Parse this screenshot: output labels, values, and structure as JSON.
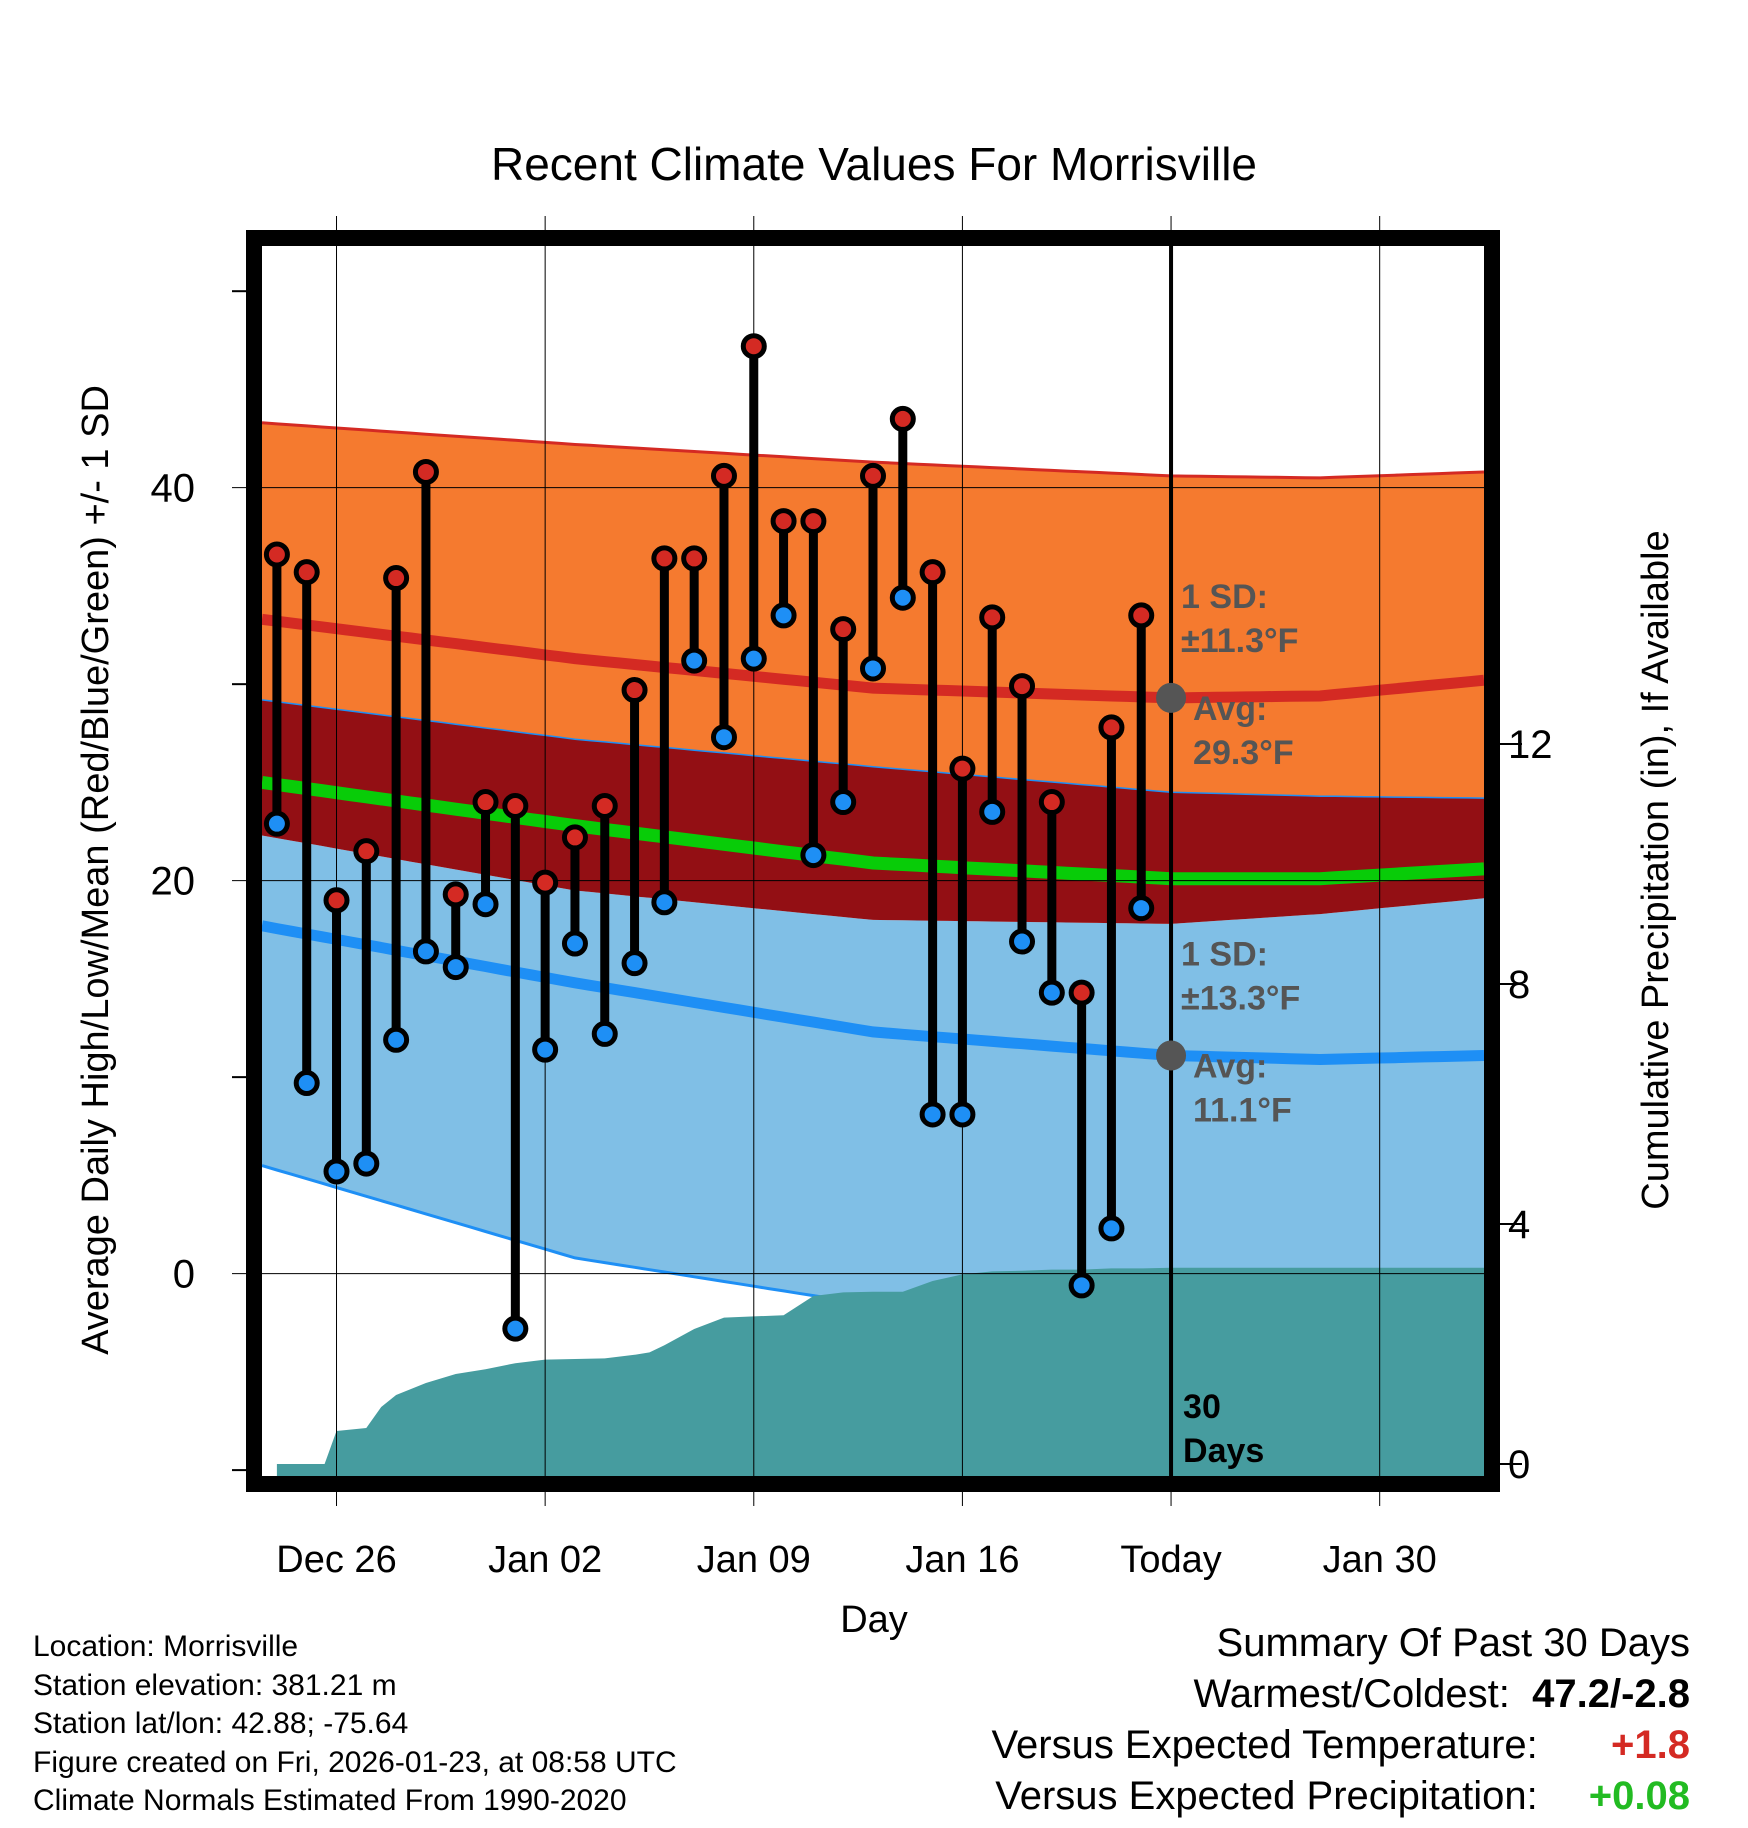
{
  "chart_data": {
    "type": "line",
    "title": "Recent Climate Values For Morrisville",
    "xlabel": "Day",
    "ylabel": "Average Daily High/Low/Mean (Red/Blue/Green) +/- 1 SD",
    "y2label": "Cumulative Precipitation (in), If Available",
    "x_tick_labels": [
      "Dec 26",
      "Jan 02",
      "Jan 09",
      "Jan 16",
      "Today",
      "Jan 30"
    ],
    "x_tick_days": [
      2,
      9,
      16,
      23,
      30,
      37
    ],
    "xlim": [
      -0.5,
      40.5
    ],
    "ylim": [
      -10.3,
      52.3
    ],
    "y_ticks": [
      0,
      20,
      40
    ],
    "y2lim": [
      -0.2,
      20.3
    ],
    "y2_ticks": [
      0,
      4,
      8,
      12
    ],
    "grid": true,
    "today_day": 30,
    "period_label_line1": "30",
    "period_label_line2": "Days",
    "normal_high": {
      "day": [
        -0.5,
        10,
        20,
        30,
        35,
        40.5
      ],
      "mean": [
        33.3,
        31.3,
        29.8,
        29.3,
        29.4,
        30.2
      ],
      "sd_upper": [
        43.3,
        42.2,
        41.3,
        40.6,
        40.5,
        40.8
      ],
      "sd_lower": [
        29.2,
        27.2,
        25.8,
        24.5,
        24.3,
        24.2
      ]
    },
    "normal_low": {
      "day": [
        -0.5,
        10,
        20,
        30,
        35,
        40.5
      ],
      "mean": [
        17.7,
        14.8,
        12.3,
        11.1,
        10.9,
        11.1
      ],
      "sd_upper": [
        22.3,
        19.5,
        18.0,
        17.8,
        18.3,
        19.1
      ],
      "sd_lower": [
        5.5,
        0.8,
        -1.6,
        -1.9,
        -1.8,
        -1.0
      ]
    },
    "normal_mean": {
      "day": [
        -0.5,
        10,
        20,
        30,
        35,
        40.5
      ],
      "values": [
        25.0,
        22.8,
        20.9,
        20.1,
        20.1,
        20.6
      ]
    },
    "days": [
      0,
      1,
      2,
      3,
      4,
      5,
      6,
      7,
      8,
      9,
      10,
      11,
      12,
      13,
      14,
      15,
      16,
      17,
      18,
      19,
      20,
      21,
      22,
      23,
      24,
      25,
      26,
      27,
      28,
      29
    ],
    "highs": [
      36.6,
      35.7,
      19.0,
      21.5,
      35.4,
      40.8,
      19.3,
      24.0,
      23.8,
      19.9,
      22.2,
      23.8,
      29.7,
      36.4,
      36.4,
      40.6,
      47.2,
      38.3,
      38.3,
      32.8,
      40.6,
      43.5,
      35.7,
      25.7,
      33.4,
      29.9,
      24.0,
      14.3,
      27.8,
      33.5
    ],
    "lows": [
      22.9,
      9.7,
      5.2,
      5.6,
      11.9,
      16.4,
      15.6,
      18.8,
      -2.8,
      11.4,
      16.8,
      12.2,
      15.8,
      18.9,
      31.2,
      27.3,
      31.3,
      33.5,
      21.3,
      24.0,
      30.8,
      34.4,
      8.1,
      8.1,
      23.5,
      16.9,
      14.3,
      -0.6,
      2.3,
      18.6
    ],
    "precip_days": [
      0,
      1,
      1.6,
      2,
      3,
      3.5,
      4,
      5,
      6,
      7,
      8,
      9,
      10,
      11,
      12,
      12.5,
      13,
      14,
      15,
      16,
      17,
      18,
      19,
      20,
      21,
      22,
      23,
      24,
      25,
      26,
      27,
      28,
      29,
      30,
      40.5
    ],
    "precip_cumulative": [
      0,
      0,
      0,
      0.55,
      0.6,
      0.95,
      1.15,
      1.35,
      1.5,
      1.58,
      1.68,
      1.74,
      1.75,
      1.76,
      1.82,
      1.86,
      1.98,
      2.25,
      2.44,
      2.46,
      2.48,
      2.8,
      2.86,
      2.87,
      2.87,
      3.05,
      3.16,
      3.21,
      3.22,
      3.24,
      3.24,
      3.26,
      3.26,
      3.27,
      3.27
    ],
    "annotations": [
      {
        "label1": "1 SD:",
        "label2": "±11.3°F",
        "label3": "Avg:",
        "label4": "29.3°F"
      },
      {
        "label1": "1 SD:",
        "label2": "±13.3°F",
        "label3": "Avg:",
        "label4": "11.1°F"
      }
    ],
    "colors": {
      "high_band": "#f57a2f",
      "high_mean": "#d42a23",
      "overlap_band": "#930f14",
      "low_band": "#80bfe6",
      "low_mean": "#1e8ff5",
      "low_edge": "#1e8ff5",
      "mean_line": "#08cc08",
      "precip": "#469c9f",
      "high_dot": "#d42a23",
      "low_dot": "#1e8ff5",
      "annotation": "#555555",
      "today_dot": "#555555"
    }
  },
  "info": {
    "location": "Location: Morrisville",
    "elevation": "Station elevation: 381.21 m",
    "latlon": "Station lat/lon: 42.88; -75.64",
    "created": "Figure created on Fri, 2026-01-23, at 08:58 UTC",
    "normals": "Climate Normals Estimated From 1990-2020"
  },
  "summary": {
    "heading": "Summary Of Past 30 Days",
    "warmest_label": "Warmest/Coldest:",
    "warmest_value": "47.2/-2.8",
    "temp_label": "Versus Expected Temperature:",
    "temp_value": "+1.8",
    "temp_color": "#d42a23",
    "precip_label": "Versus Expected Precipitation:",
    "precip_value": "+0.08",
    "precip_color": "#22bb22"
  }
}
